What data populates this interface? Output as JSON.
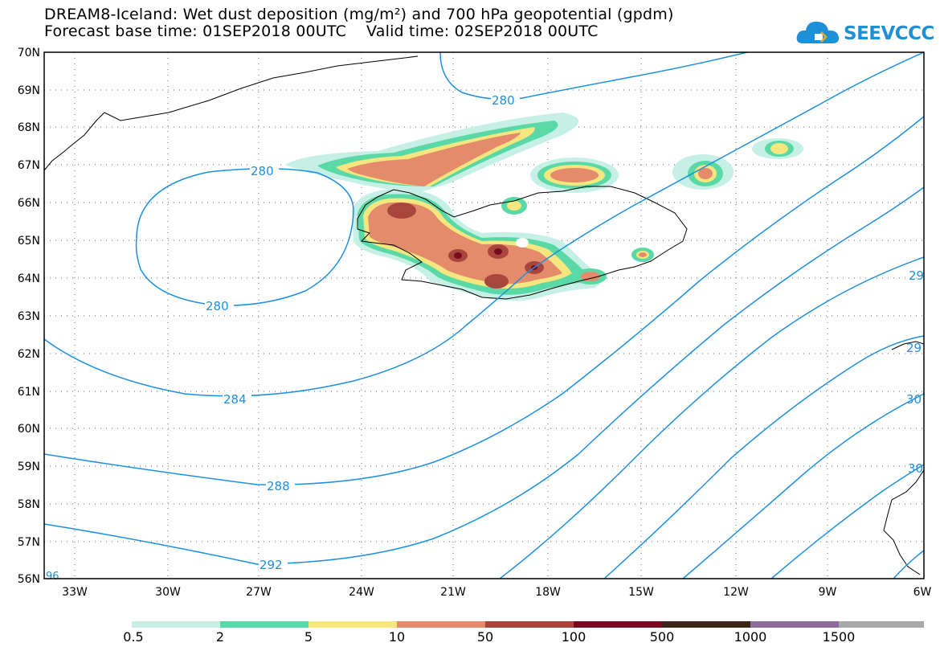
{
  "header": {
    "title_line1": "DREAM8-Iceland: Wet dust deposition (mg/m²) and 700 hPa geopotential (gpdm)",
    "title_line2": "Forecast base time: 01SEP2018 00UTC    Valid time: 02SEP2018 00UTC"
  },
  "logo": {
    "text": "SEEVCCC",
    "icon": "cloud-icon",
    "color": "#1e90d8"
  },
  "map": {
    "lat_labels": [
      "70N",
      "69N",
      "68N",
      "67N",
      "66N",
      "65N",
      "64N",
      "63N",
      "62N",
      "61N",
      "60N",
      "59N",
      "58N",
      "57N",
      "56N"
    ],
    "lon_labels": [
      "33W",
      "30W",
      "27W",
      "24W",
      "21W",
      "18W",
      "15W",
      "12W",
      "9W",
      "6W"
    ],
    "contour_color": "#1e90e0",
    "contour_labels": [
      "280",
      "280",
      "280",
      "284",
      "288",
      "292",
      "29",
      "30",
      "30",
      "96",
      "29"
    ]
  },
  "legend": {
    "colors": [
      "#c6f0e6",
      "#5ad9a6",
      "#f5e680",
      "#e38b6b",
      "#a8453d",
      "#7a0a1e",
      "#3a2518",
      "#8e6c9c",
      "#a9a9a9"
    ],
    "labels": [
      "0.5",
      "2",
      "5",
      "10",
      "50",
      "100",
      "500",
      "1000",
      "1500"
    ]
  }
}
